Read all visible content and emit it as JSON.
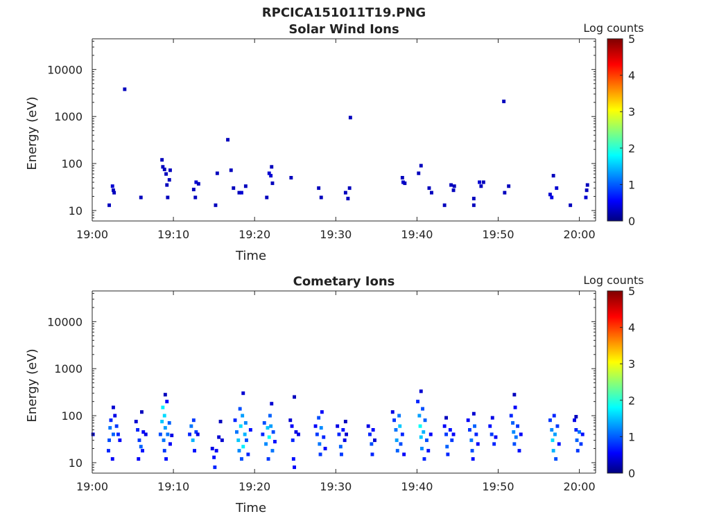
{
  "figure": {
    "title": "RPCICA151011T19.PNG"
  },
  "chart_data": [
    {
      "type": "heatmap",
      "title": "Solar Wind Ions",
      "xlabel": "Time",
      "ylabel": "Energy (eV)",
      "xlim": [
        "19:00",
        "20:02"
      ],
      "xticks": [
        "19:00",
        "19:10",
        "19:20",
        "19:30",
        "19:40",
        "19:50",
        "20:00"
      ],
      "y_scale": "log",
      "ylim": [
        6,
        45000
      ],
      "yticks": [
        "10",
        "100",
        "1000",
        "10000"
      ],
      "yticks_values": [
        10,
        100,
        1000,
        10000
      ],
      "colorbar": {
        "label": "Log counts",
        "min": 0,
        "max": 5,
        "ticks": [
          "0",
          "1",
          "2",
          "3",
          "4",
          "5"
        ],
        "colormap": "jet"
      },
      "grid": false,
      "cells_format": [
        "minutes after 19:00",
        "energy in eV",
        "log counts"
      ],
      "cells": [
        [
          2.1,
          13,
          0.3
        ],
        [
          2.5,
          33,
          0.4
        ],
        [
          2.6,
          27,
          0.3
        ],
        [
          2.7,
          24,
          0.3
        ],
        [
          4.0,
          3800,
          0.3
        ],
        [
          6.0,
          19,
          0.3
        ],
        [
          8.6,
          120,
          0.3
        ],
        [
          8.7,
          85,
          0.3
        ],
        [
          8.9,
          75,
          0.3
        ],
        [
          9.1,
          60,
          0.3
        ],
        [
          9.2,
          35,
          0.3
        ],
        [
          9.3,
          19,
          0.3
        ],
        [
          9.5,
          45,
          0.3
        ],
        [
          9.6,
          72,
          0.3
        ],
        [
          12.5,
          28,
          0.3
        ],
        [
          12.7,
          19,
          0.3
        ],
        [
          12.8,
          40,
          0.4
        ],
        [
          13.1,
          37,
          0.3
        ],
        [
          15.2,
          13,
          0.3
        ],
        [
          15.4,
          62,
          0.3
        ],
        [
          16.7,
          320,
          0.3
        ],
        [
          17.1,
          72,
          0.3
        ],
        [
          17.4,
          30,
          0.3
        ],
        [
          18.9,
          33,
          0.3
        ],
        [
          18.1,
          24,
          0.3
        ],
        [
          18.4,
          24,
          0.4
        ],
        [
          21.5,
          19,
          0.3
        ],
        [
          21.8,
          62,
          0.4
        ],
        [
          22.1,
          85,
          0.3
        ],
        [
          22.2,
          38,
          0.3
        ],
        [
          22.0,
          55,
          0.4
        ],
        [
          24.5,
          50,
          0.3
        ],
        [
          27.9,
          30,
          0.3
        ],
        [
          28.2,
          19,
          0.3
        ],
        [
          31.2,
          24,
          0.3
        ],
        [
          31.5,
          18,
          0.3
        ],
        [
          31.7,
          30,
          0.3
        ],
        [
          31.8,
          950,
          0.3
        ],
        [
          38.2,
          50,
          0.3
        ],
        [
          38.3,
          40,
          0.4
        ],
        [
          38.5,
          38,
          0.3
        ],
        [
          40.2,
          62,
          0.3
        ],
        [
          40.5,
          90,
          0.3
        ],
        [
          41.5,
          30,
          0.3
        ],
        [
          41.8,
          24,
          0.3
        ],
        [
          43.4,
          13,
          0.3
        ],
        [
          44.2,
          35,
          0.3
        ],
        [
          44.5,
          27,
          0.3
        ],
        [
          44.6,
          33,
          0.3
        ],
        [
          47.0,
          13,
          0.3
        ],
        [
          47.0,
          18,
          0.3
        ],
        [
          47.7,
          40,
          0.4
        ],
        [
          47.9,
          33,
          0.3
        ],
        [
          48.2,
          40,
          0.3
        ],
        [
          50.7,
          2100,
          0.3
        ],
        [
          50.8,
          24,
          0.3
        ],
        [
          51.3,
          33,
          0.3
        ],
        [
          56.4,
          22,
          0.4
        ],
        [
          56.6,
          19,
          0.5
        ],
        [
          56.8,
          55,
          0.3
        ],
        [
          57.2,
          30,
          0.4
        ],
        [
          58.9,
          13,
          0.3
        ],
        [
          60.8,
          19,
          0.4
        ],
        [
          60.9,
          27,
          0.3
        ],
        [
          61.0,
          35,
          0.3
        ]
      ]
    },
    {
      "type": "heatmap",
      "title": "Cometary Ions",
      "xlabel": "Time",
      "ylabel": "Energy (eV)",
      "xlim": [
        "19:00",
        "20:02"
      ],
      "xticks": [
        "19:00",
        "19:10",
        "19:20",
        "19:30",
        "19:40",
        "19:50",
        "20:00"
      ],
      "y_scale": "log",
      "ylim": [
        6,
        45000
      ],
      "yticks": [
        "10",
        "100",
        "1000",
        "10000"
      ],
      "yticks_values": [
        10,
        100,
        1000,
        10000
      ],
      "colorbar": {
        "label": "Log counts",
        "min": 0,
        "max": 5,
        "ticks": [
          "0",
          "1",
          "2",
          "3",
          "4",
          "5"
        ],
        "colormap": "jet"
      },
      "grid": false,
      "cells_format": [
        "minutes after 19:00",
        "energy in eV",
        "log counts"
      ],
      "cells": [
        [
          0.1,
          40,
          0.4
        ],
        [
          2.0,
          18,
          0.8
        ],
        [
          2.1,
          30,
          1.0
        ],
        [
          2.2,
          55,
          1.2
        ],
        [
          2.3,
          80,
          0.8
        ],
        [
          2.5,
          12,
          0.6
        ],
        [
          2.6,
          40,
          1.1
        ],
        [
          2.6,
          150,
          0.4
        ],
        [
          2.8,
          100,
          0.5
        ],
        [
          3.0,
          60,
          0.9
        ],
        [
          3.2,
          40,
          0.8
        ],
        [
          3.4,
          30,
          0.6
        ],
        [
          5.4,
          75,
          0.4
        ],
        [
          5.6,
          50,
          0.8
        ],
        [
          5.7,
          12,
          0.6
        ],
        [
          5.8,
          30,
          0.9
        ],
        [
          6.0,
          22,
          1.1
        ],
        [
          6.2,
          18,
          0.7
        ],
        [
          6.3,
          45,
          0.6
        ],
        [
          6.1,
          120,
          0.3
        ],
        [
          6.6,
          40,
          0.5
        ],
        [
          8.4,
          40,
          1.0
        ],
        [
          8.6,
          75,
          1.6
        ],
        [
          8.7,
          150,
          1.8
        ],
        [
          8.8,
          30,
          1.2
        ],
        [
          8.9,
          18,
          0.9
        ],
        [
          8.9,
          100,
          1.7
        ],
        [
          9.0,
          55,
          1.4
        ],
        [
          9.1,
          12,
          0.7
        ],
        [
          9.2,
          200,
          0.6
        ],
        [
          9.3,
          40,
          1.2
        ],
        [
          9.5,
          70,
          1.1
        ],
        [
          9.6,
          25,
          0.6
        ],
        [
          9.0,
          280,
          0.3
        ],
        [
          9.8,
          38,
          0.5
        ],
        [
          12.0,
          40,
          0.8
        ],
        [
          12.2,
          60,
          1.2
        ],
        [
          12.4,
          30,
          1.5
        ],
        [
          12.5,
          80,
          0.9
        ],
        [
          12.6,
          18,
          0.7
        ],
        [
          12.8,
          45,
          0.9
        ],
        [
          13.0,
          40,
          0.5
        ],
        [
          14.8,
          20,
          0.5
        ],
        [
          15.0,
          13,
          0.7
        ],
        [
          15.1,
          8,
          0.8
        ],
        [
          15.3,
          18,
          0.6
        ],
        [
          15.6,
          35,
          0.4
        ],
        [
          16.0,
          30,
          0.4
        ],
        [
          15.8,
          75,
          0.3
        ],
        [
          17.6,
          80,
          0.8
        ],
        [
          17.8,
          45,
          1.2
        ],
        [
          18.0,
          30,
          1.6
        ],
        [
          18.1,
          18,
          1.3
        ],
        [
          18.2,
          140,
          1.0
        ],
        [
          18.3,
          60,
          1.7
        ],
        [
          18.4,
          12,
          1.0
        ],
        [
          18.5,
          100,
          1.4
        ],
        [
          18.6,
          22,
          1.8
        ],
        [
          18.8,
          40,
          1.5
        ],
        [
          18.9,
          70,
          1.3
        ],
        [
          19.0,
          30,
          1.0
        ],
        [
          19.2,
          15,
          0.8
        ],
        [
          18.6,
          300,
          0.4
        ],
        [
          19.5,
          50,
          0.7
        ],
        [
          21.0,
          40,
          0.8
        ],
        [
          21.2,
          70,
          1.0
        ],
        [
          21.4,
          25,
          1.3
        ],
        [
          21.6,
          55,
          1.6
        ],
        [
          21.7,
          12,
          0.9
        ],
        [
          21.8,
          35,
          1.9
        ],
        [
          21.9,
          100,
          1.1
        ],
        [
          22.0,
          60,
          1.4
        ],
        [
          22.2,
          18,
          1.2
        ],
        [
          22.3,
          45,
          1.0
        ],
        [
          22.5,
          28,
          0.7
        ],
        [
          22.1,
          180,
          0.4
        ],
        [
          24.4,
          80,
          0.4
        ],
        [
          24.6,
          60,
          0.6
        ],
        [
          24.7,
          30,
          0.8
        ],
        [
          24.8,
          12,
          0.7
        ],
        [
          24.9,
          8,
          0.6
        ],
        [
          25.1,
          45,
          0.5
        ],
        [
          24.9,
          250,
          0.3
        ],
        [
          25.4,
          40,
          0.5
        ],
        [
          27.5,
          60,
          0.6
        ],
        [
          27.7,
          40,
          0.9
        ],
        [
          27.9,
          90,
          1.0
        ],
        [
          28.0,
          25,
          1.2
        ],
        [
          28.1,
          15,
          0.9
        ],
        [
          28.2,
          55,
          1.3
        ],
        [
          28.3,
          120,
          0.6
        ],
        [
          28.5,
          35,
          0.8
        ],
        [
          28.7,
          20,
          0.6
        ],
        [
          30.2,
          60,
          0.5
        ],
        [
          30.4,
          40,
          0.8
        ],
        [
          30.6,
          22,
          1.1
        ],
        [
          30.7,
          15,
          0.9
        ],
        [
          30.9,
          50,
          0.7
        ],
        [
          31.1,
          30,
          0.5
        ],
        [
          31.3,
          40,
          0.4
        ],
        [
          31.2,
          75,
          0.3
        ],
        [
          34.0,
          60,
          0.5
        ],
        [
          34.2,
          40,
          0.8
        ],
        [
          34.4,
          25,
          1.0
        ],
        [
          34.5,
          15,
          0.8
        ],
        [
          34.6,
          50,
          0.6
        ],
        [
          34.8,
          30,
          0.4
        ],
        [
          37.0,
          120,
          0.5
        ],
        [
          37.2,
          80,
          0.9
        ],
        [
          37.4,
          50,
          1.2
        ],
        [
          37.5,
          30,
          1.4
        ],
        [
          37.6,
          18,
          1.1
        ],
        [
          37.8,
          100,
          1.2
        ],
        [
          37.9,
          60,
          1.6
        ],
        [
          38.0,
          25,
          1.0
        ],
        [
          38.2,
          40,
          0.8
        ],
        [
          38.4,
          15,
          0.6
        ],
        [
          40.1,
          200,
          0.8
        ],
        [
          40.3,
          100,
          1.4
        ],
        [
          40.4,
          60,
          1.9
        ],
        [
          40.5,
          35,
          1.6
        ],
        [
          40.6,
          20,
          1.3
        ],
        [
          40.7,
          140,
          1.0
        ],
        [
          40.8,
          45,
          1.5
        ],
        [
          40.9,
          12,
          0.8
        ],
        [
          41.0,
          80,
          1.1
        ],
        [
          41.2,
          30,
          1.0
        ],
        [
          41.4,
          18,
          0.7
        ],
        [
          40.5,
          330,
          0.4
        ],
        [
          41.7,
          40,
          0.6
        ],
        [
          43.4,
          60,
          0.6
        ],
        [
          43.6,
          40,
          0.9
        ],
        [
          43.7,
          22,
          1.1
        ],
        [
          43.8,
          15,
          0.8
        ],
        [
          44.1,
          50,
          0.7
        ],
        [
          44.3,
          30,
          0.9
        ],
        [
          44.5,
          40,
          0.6
        ],
        [
          43.6,
          90,
          0.3
        ],
        [
          46.3,
          80,
          0.6
        ],
        [
          46.5,
          50,
          0.9
        ],
        [
          46.7,
          30,
          1.2
        ],
        [
          46.8,
          18,
          1.0
        ],
        [
          46.9,
          12,
          0.7
        ],
        [
          47.1,
          60,
          1.1
        ],
        [
          47.3,
          40,
          0.8
        ],
        [
          47.5,
          25,
          0.6
        ],
        [
          47.0,
          110,
          0.4
        ],
        [
          49.0,
          60,
          0.7
        ],
        [
          49.2,
          40,
          0.9
        ],
        [
          49.3,
          90,
          0.5
        ],
        [
          49.5,
          25,
          0.8
        ],
        [
          49.7,
          35,
          0.6
        ],
        [
          51.6,
          100,
          0.8
        ],
        [
          51.8,
          70,
          1.1
        ],
        [
          51.9,
          45,
          1.3
        ],
        [
          52.0,
          25,
          1.0
        ],
        [
          52.1,
          150,
          0.6
        ],
        [
          52.2,
          35,
          1.2
        ],
        [
          52.4,
          60,
          0.9
        ],
        [
          52.6,
          18,
          0.7
        ],
        [
          52.8,
          40,
          0.6
        ],
        [
          52.0,
          280,
          0.3
        ],
        [
          56.4,
          80,
          0.9
        ],
        [
          56.6,
          50,
          1.3
        ],
        [
          56.7,
          30,
          1.7
        ],
        [
          56.8,
          18,
          1.5
        ],
        [
          56.9,
          100,
          0.8
        ],
        [
          57.0,
          40,
          1.4
        ],
        [
          57.1,
          12,
          1.0
        ],
        [
          57.3,
          60,
          0.9
        ],
        [
          57.5,
          25,
          0.7
        ],
        [
          59.4,
          80,
          0.5
        ],
        [
          59.6,
          50,
          0.8
        ],
        [
          59.7,
          30,
          1.1
        ],
        [
          59.8,
          18,
          0.9
        ],
        [
          60.0,
          45,
          1.2
        ],
        [
          60.2,
          25,
          0.9
        ],
        [
          60.4,
          40,
          0.7
        ],
        [
          59.6,
          95,
          0.3
        ]
      ]
    }
  ]
}
